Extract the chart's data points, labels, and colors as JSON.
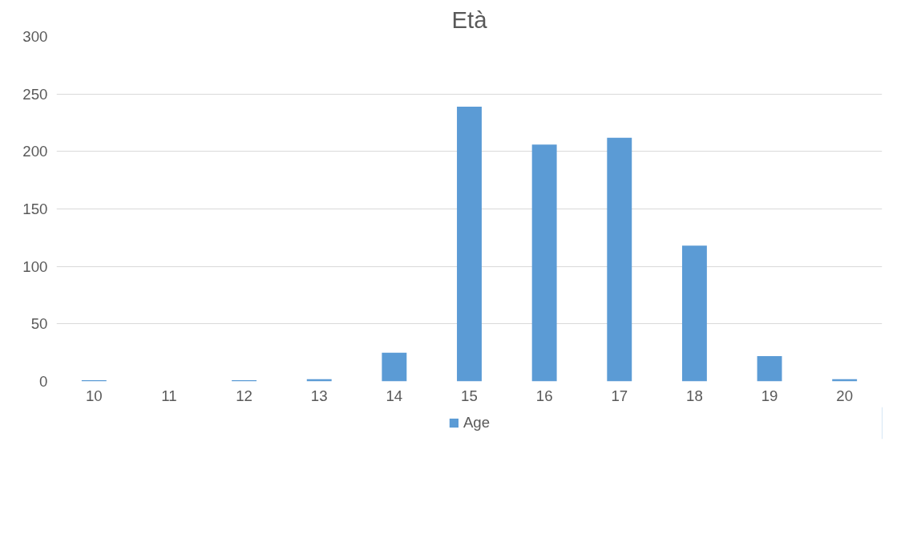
{
  "chart_data": {
    "type": "bar",
    "title": "Età",
    "categories": [
      "10",
      "11",
      "12",
      "13",
      "14",
      "15",
      "16",
      "17",
      "18",
      "19",
      "20"
    ],
    "series": [
      {
        "name": "Age",
        "color": "#5b9bd5",
        "values": [
          1,
          0,
          1,
          2,
          25,
          239,
          206,
          212,
          118,
          22,
          2
        ]
      }
    ],
    "ylim": [
      0,
      300
    ],
    "yticks": [
      0,
      50,
      100,
      150,
      200,
      250,
      300
    ],
    "grid": "y",
    "legend": "bottom"
  }
}
